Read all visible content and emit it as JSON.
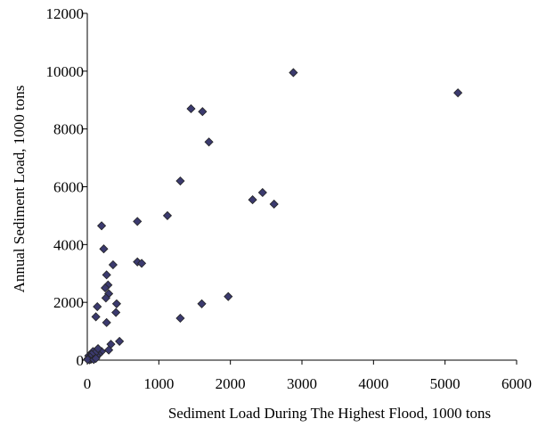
{
  "chart_data": {
    "type": "scatter",
    "title": "",
    "xlabel": "Sediment Load During The Highest Flood, 1000  tons",
    "ylabel": "Annual Sediment Load, 1000  tons",
    "xlim": [
      0,
      6000
    ],
    "ylim": [
      0,
      12000
    ],
    "x_ticks": [
      0,
      1000,
      2000,
      3000,
      4000,
      5000,
      6000
    ],
    "y_ticks": [
      0,
      2000,
      4000,
      6000,
      8000,
      10000,
      12000
    ],
    "grid": false,
    "legend": "none",
    "marker": "diamond",
    "marker_color": "#3b3a6e",
    "series": [
      {
        "points": [
          [
            2880,
            9950
          ],
          [
            5180,
            9250
          ],
          [
            1450,
            8700
          ],
          [
            1610,
            8600
          ],
          [
            1700,
            7550
          ],
          [
            1300,
            6200
          ],
          [
            2450,
            5800
          ],
          [
            2310,
            5550
          ],
          [
            2610,
            5400
          ],
          [
            1120,
            5000
          ],
          [
            700,
            4800
          ],
          [
            200,
            4650
          ],
          [
            230,
            3850
          ],
          [
            700,
            3400
          ],
          [
            760,
            3350
          ],
          [
            360,
            3300
          ],
          [
            270,
            2950
          ],
          [
            290,
            2600
          ],
          [
            250,
            2500
          ],
          [
            300,
            2300
          ],
          [
            260,
            2150
          ],
          [
            1970,
            2200
          ],
          [
            410,
            1950
          ],
          [
            1600,
            1950
          ],
          [
            400,
            1650
          ],
          [
            140,
            1850
          ],
          [
            120,
            1500
          ],
          [
            270,
            1300
          ],
          [
            1300,
            1450
          ],
          [
            450,
            650
          ],
          [
            330,
            550
          ],
          [
            300,
            350
          ],
          [
            200,
            300
          ],
          [
            160,
            200
          ],
          [
            130,
            150
          ],
          [
            100,
            100
          ],
          [
            80,
            80
          ],
          [
            60,
            50
          ],
          [
            50,
            30
          ],
          [
            30,
            10
          ],
          [
            20,
            150
          ],
          [
            80,
            300
          ],
          [
            110,
            250
          ],
          [
            150,
            400
          ],
          [
            60,
            200
          ],
          [
            40,
            100
          ],
          [
            10,
            50
          ],
          [
            5,
            20
          ],
          [
            90,
            20
          ],
          [
            120,
            60
          ]
        ]
      }
    ]
  }
}
